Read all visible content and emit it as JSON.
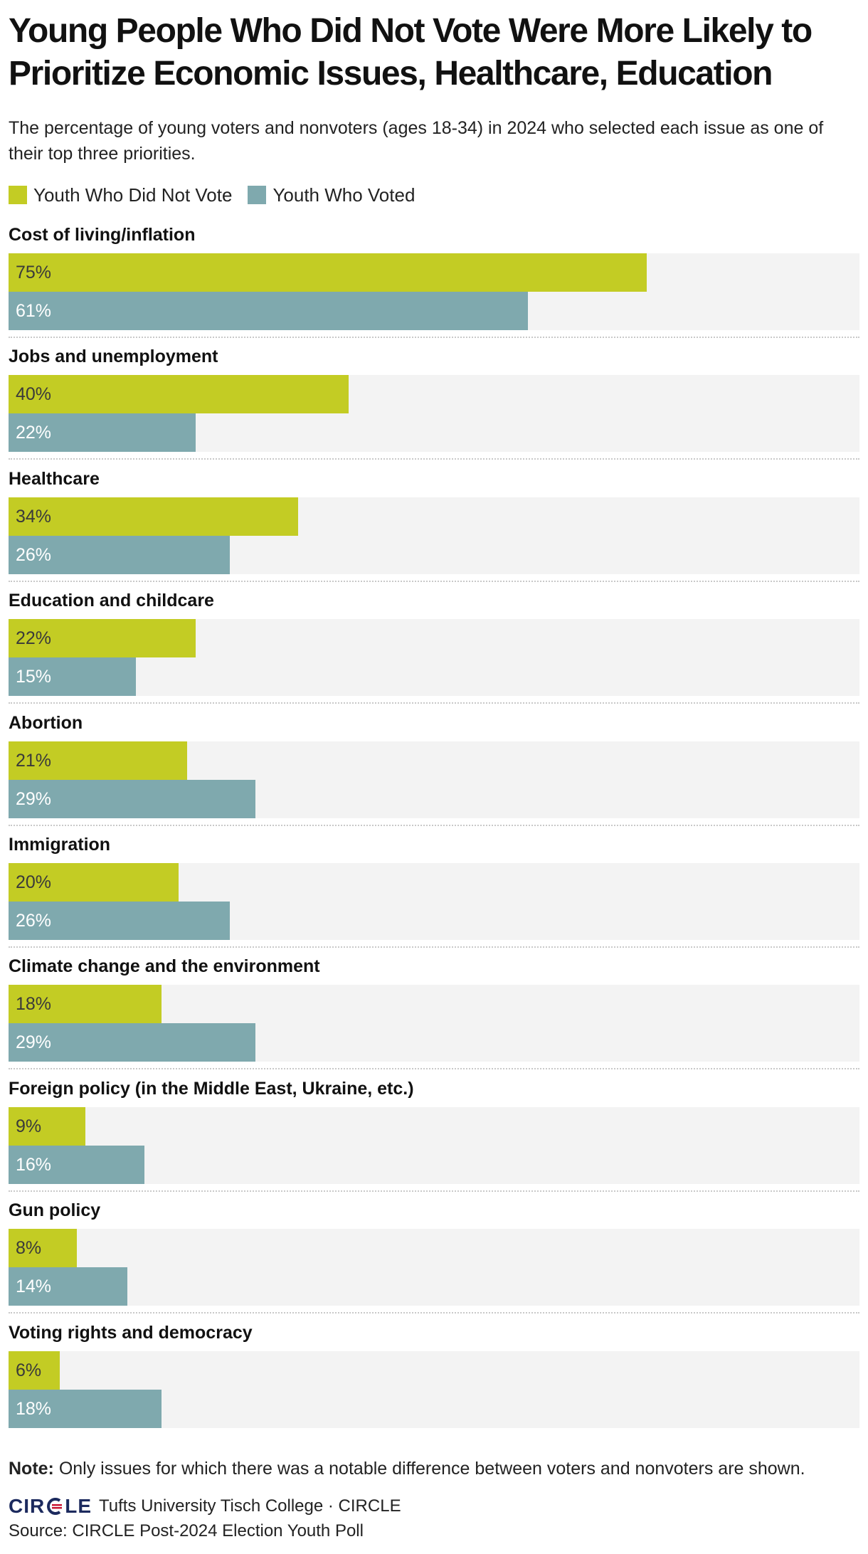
{
  "colors": {
    "nonvoters": "#c3cc24",
    "voters": "#7fa9ae",
    "track": "#f3f3f3"
  },
  "chart_data": {
    "type": "bar",
    "orientation": "horizontal",
    "title": "Young People Who Did Not Vote Were More Likely to Prioritize Economic Issues, Healthcare, Education",
    "subtitle": "The percentage of young voters and nonvoters (ages 18-34) in 2024 who selected each issue as one of their top three priorities.",
    "xlim": [
      0,
      100
    ],
    "unit": "%",
    "legend_placement": "top-left",
    "categories": [
      "Cost of living/inflation",
      "Jobs and unemployment",
      "Healthcare",
      "Education and childcare",
      "Abortion",
      "Immigration",
      "Climate change and the environment",
      "Foreign policy (in the Middle East, Ukraine, etc.)",
      "Gun policy",
      "Voting rights and democracy"
    ],
    "series": [
      {
        "name": "Youth Who Did Not Vote",
        "color": "#c3cc24",
        "text_color": "#3a3a3a",
        "values": [
          75,
          40,
          34,
          22,
          21,
          20,
          18,
          9,
          8,
          6
        ]
      },
      {
        "name": "Youth Who Voted",
        "color": "#7fa9ae",
        "text_color": "#ffffff",
        "values": [
          61,
          22,
          26,
          15,
          29,
          26,
          29,
          16,
          14,
          18
        ]
      }
    ]
  },
  "footer": {
    "note_label": "Note:",
    "note_text": " Only issues for which there was a notable difference between voters and nonvoters are shown.",
    "logo_text_left": "CIR",
    "logo_text_right": "LE",
    "org": "Tufts University Tisch College · CIRCLE",
    "source": "Source: CIRCLE Post-2024 Election Youth Poll"
  }
}
